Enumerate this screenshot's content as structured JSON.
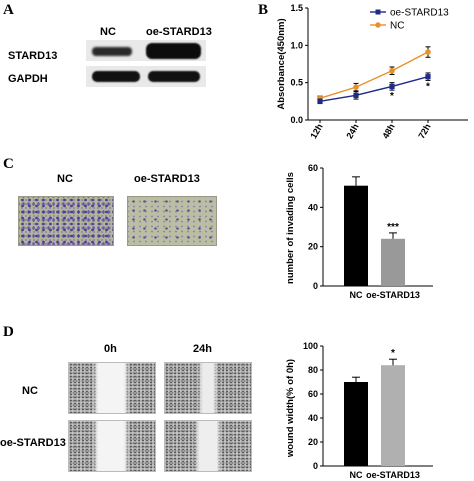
{
  "panels": {
    "a": "A",
    "b": "B",
    "c": "C",
    "d": "D"
  },
  "western": {
    "col_nc": "NC",
    "col_oe": "oe-STARD13",
    "rows": [
      "STARD13",
      "GAPDH"
    ]
  },
  "transwell": {
    "col_nc": "NC",
    "col_oe": "oe-STARD13"
  },
  "wound": {
    "col_0h": "0h",
    "col_24h": "24h",
    "row_nc": "NC",
    "row_oe": "oe-STARD13"
  },
  "chart_data": [
    {
      "id": "cck8",
      "type": "line",
      "xlabel": "",
      "ylabel": "Absorbance(450nm)",
      "categories": [
        "12h",
        "24h",
        "48h",
        "72h"
      ],
      "ylim": [
        0,
        1.5
      ],
      "yticks": [
        "0.0",
        "0.5",
        "1.0",
        "1.5"
      ],
      "legend_position": "top-right",
      "series": [
        {
          "name": "oe-STARD13",
          "color": "#1f2a8a",
          "marker": "square",
          "values": [
            0.25,
            0.33,
            0.45,
            0.58
          ],
          "errors": [
            0.03,
            0.05,
            0.05,
            0.05
          ]
        },
        {
          "name": "NC",
          "color": "#e8902a",
          "marker": "circle",
          "values": [
            0.29,
            0.44,
            0.66,
            0.91
          ],
          "errors": [
            0.03,
            0.05,
            0.05,
            0.07
          ]
        }
      ],
      "annotations": [
        {
          "category": "48h",
          "text": "*"
        },
        {
          "category": "72h",
          "text": "*"
        }
      ]
    },
    {
      "id": "invasion",
      "type": "bar",
      "xlabel": "",
      "ylabel": "number of invading cells",
      "categories": [
        "NC",
        "oe-STARD13"
      ],
      "ylim": [
        0,
        60
      ],
      "yticks": [
        "0",
        "20",
        "40",
        "60"
      ],
      "values": [
        51,
        24
      ],
      "errors": [
        4.5,
        3
      ],
      "colors": [
        "#000000",
        "#999999"
      ],
      "annotations": [
        {
          "category": "oe-STARD13",
          "text": "***"
        }
      ]
    },
    {
      "id": "wound",
      "type": "bar",
      "xlabel": "",
      "ylabel": "wound width(% of 0h)",
      "categories": [
        "NC",
        "oe-STARD13"
      ],
      "ylim": [
        0,
        100
      ],
      "yticks": [
        "0",
        "20",
        "40",
        "60",
        "80",
        "100"
      ],
      "values": [
        70,
        84
      ],
      "errors": [
        4,
        5
      ],
      "colors": [
        "#000000",
        "#b0b0b0"
      ],
      "annotations": [
        {
          "category": "oe-STARD13",
          "text": "*"
        }
      ]
    }
  ]
}
